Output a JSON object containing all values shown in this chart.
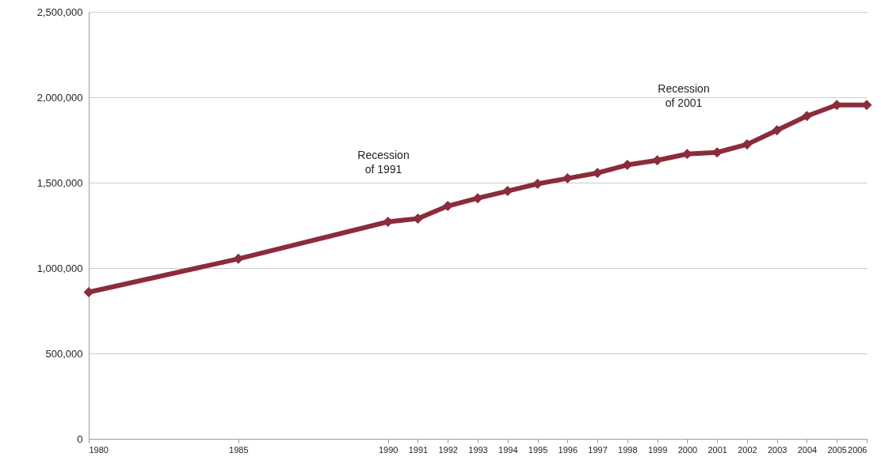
{
  "chart_data": {
    "type": "line",
    "x": [
      1980,
      1985,
      1990,
      1991,
      1992,
      1993,
      1994,
      1995,
      1996,
      1997,
      1998,
      1999,
      2000,
      2001,
      2002,
      2003,
      2004,
      2005,
      2006
    ],
    "series": [
      {
        "color": "#8b2c3a",
        "values": [
          859000,
          1054000,
          1271000,
          1289000,
          1363000,
          1409000,
          1451000,
          1493000,
          1525000,
          1557000,
          1604000,
          1631000,
          1668000,
          1677000,
          1724000,
          1807000,
          1890000,
          1955000,
          1955000
        ]
      }
    ],
    "xlim": [
      1980,
      2006
    ],
    "xticks": [
      1980,
      1985,
      1990,
      1991,
      1992,
      1993,
      1994,
      1995,
      1996,
      1997,
      1998,
      1999,
      2000,
      2001,
      2002,
      2003,
      2004,
      2005,
      2006
    ],
    "ylim": [
      0,
      2500000
    ],
    "yticks": [
      {
        "value": 0,
        "label": "0"
      },
      {
        "value": 500000,
        "label": "500,000"
      },
      {
        "value": 1000000,
        "label": "1,000,000"
      },
      {
        "value": 1500000,
        "label": "1,500,000"
      },
      {
        "value": 2000000,
        "label": "2,000,000"
      },
      {
        "value": 2500000,
        "label": "2,500,000"
      }
    ],
    "grid": "y",
    "marker": "diamond",
    "line_style": "solid",
    "annotations": [
      "Recession\nof 1991",
      "Recession\nof 2001"
    ]
  }
}
